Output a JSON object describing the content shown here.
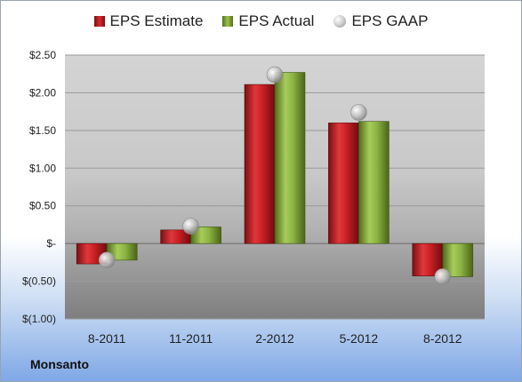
{
  "company": "Monsanto",
  "chart_data": {
    "type": "bar",
    "categories": [
      "8-2011",
      "11-2011",
      "2-2012",
      "5-2012",
      "8-2012"
    ],
    "series": [
      {
        "name": "EPS Estimate",
        "kind": "bar",
        "color": "#d82a2e",
        "values": [
          -0.27,
          0.18,
          2.11,
          1.6,
          -0.43
        ]
      },
      {
        "name": "EPS Actual",
        "kind": "bar",
        "color": "#9cc24f",
        "values": [
          -0.22,
          0.22,
          2.27,
          1.62,
          -0.44
        ]
      },
      {
        "name": "EPS GAAP",
        "kind": "marker",
        "color": "#b8b8b8",
        "values": [
          -0.22,
          0.23,
          2.24,
          1.74,
          -0.44
        ]
      }
    ],
    "yticks": [
      {
        "value": 2.5,
        "label": "$2.50"
      },
      {
        "value": 2.0,
        "label": "$2.00"
      },
      {
        "value": 1.5,
        "label": "$1.50"
      },
      {
        "value": 1.0,
        "label": "$1.00"
      },
      {
        "value": 0.5,
        "label": "$0.50"
      },
      {
        "value": 0.0,
        "label": "$-"
      },
      {
        "value": -0.5,
        "label": "$(0.50)"
      },
      {
        "value": -1.0,
        "label": "$(1.00)"
      }
    ],
    "ylim": [
      -1.0,
      2.5
    ],
    "grid": true,
    "legend": "top"
  }
}
